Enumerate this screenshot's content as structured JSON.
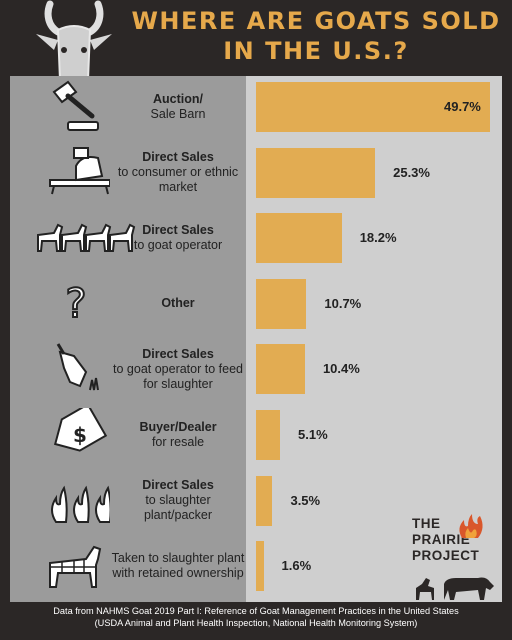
{
  "header": {
    "title_line1": "WHERE ARE GOATS SOLD",
    "title_line2": "IN THE U.S.?"
  },
  "chart_data": {
    "type": "bar",
    "orientation": "horizontal",
    "categories": [
      {
        "bold": "Auction/",
        "rest": "Sale Barn",
        "bold2": ""
      },
      {
        "bold": "Direct Sales",
        "rest": "to consumer or ethnic market"
      },
      {
        "bold": "Direct Sales",
        "rest": "to goat operator"
      },
      {
        "bold": "Other",
        "rest": ""
      },
      {
        "bold": "Direct Sales",
        "rest": "to goat operator to feed for slaughter"
      },
      {
        "bold": "Buyer/Dealer",
        "rest": "for resale"
      },
      {
        "bold": "Direct Sales",
        "rest": "to slaughter plant/packer"
      },
      {
        "bold": "",
        "rest": "Taken to slaughter plant with retained ownership"
      }
    ],
    "values": [
      49.7,
      25.3,
      18.2,
      10.7,
      10.4,
      5.1,
      3.5,
      1.6
    ],
    "value_labels": [
      "49.7%",
      "25.3%",
      "18.2%",
      "10.7%",
      "10.4%",
      "5.1%",
      "3.5%",
      "1.6%"
    ],
    "icons": [
      "gavel-icon",
      "meat-slicer-icon",
      "goat-herd-icon",
      "question-mark-icon",
      "goat-grazing-icon",
      "price-tag-icon",
      "flames-icon",
      "goat-cuts-icon"
    ],
    "bar_color": "#e2ac52",
    "xlim": [
      0,
      49.7
    ]
  },
  "logo": {
    "line1": "THE",
    "line2": "PRAIRIE",
    "line3": "PROJECT"
  },
  "footer": {
    "line1": "Data from NAHMS Goat 2019 Part I: Reference of Goat Management Practices in the United States",
    "line2": "(USDA Animal and Plant Health Inspection, National Health Monitoring System)"
  },
  "colors": {
    "background": "#2b2726",
    "title": "#e6a94b",
    "panel_left": "#9b9b9b",
    "panel_right": "#cfcfcf"
  }
}
